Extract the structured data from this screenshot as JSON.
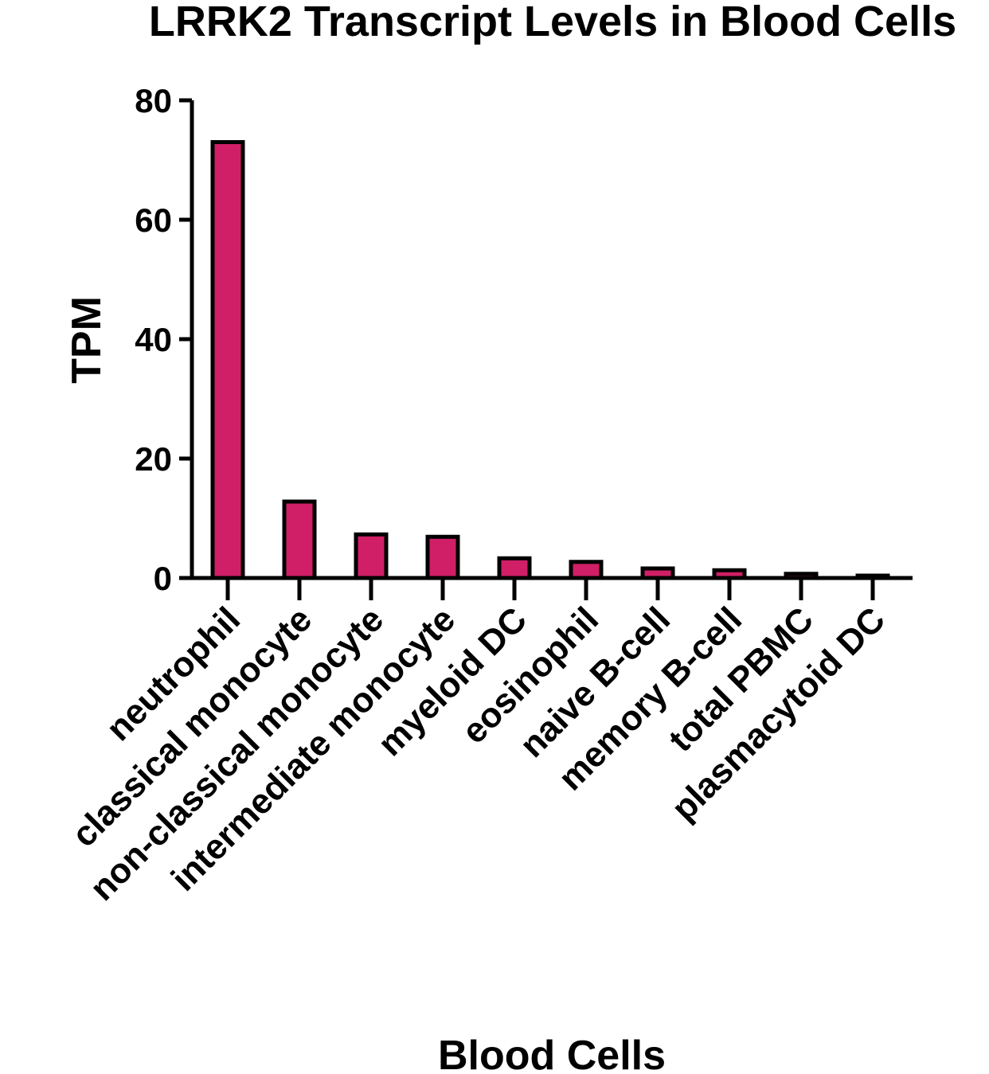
{
  "chart_data": {
    "type": "bar",
    "title": "LRRK2 Transcript Levels in Blood Cells",
    "xlabel": "Blood Cells",
    "ylabel": "TPM",
    "ylim": [
      0,
      80
    ],
    "yticks": [
      0,
      20,
      40,
      60,
      80
    ],
    "categories": [
      "neutrophil",
      "classical monocyte",
      "non-classical monocyte",
      "intermediate monocyte",
      "myeloid DC",
      "eosinophil",
      "naive B-cell",
      "memory B-cell",
      "total PBMC",
      "plasmacytoid DC"
    ],
    "values": [
      73.0,
      12.8,
      7.3,
      6.9,
      3.3,
      2.7,
      1.6,
      1.3,
      0.7,
      0.4
    ],
    "bar_color": "#d01f66",
    "grid": false,
    "legend": "none"
  }
}
